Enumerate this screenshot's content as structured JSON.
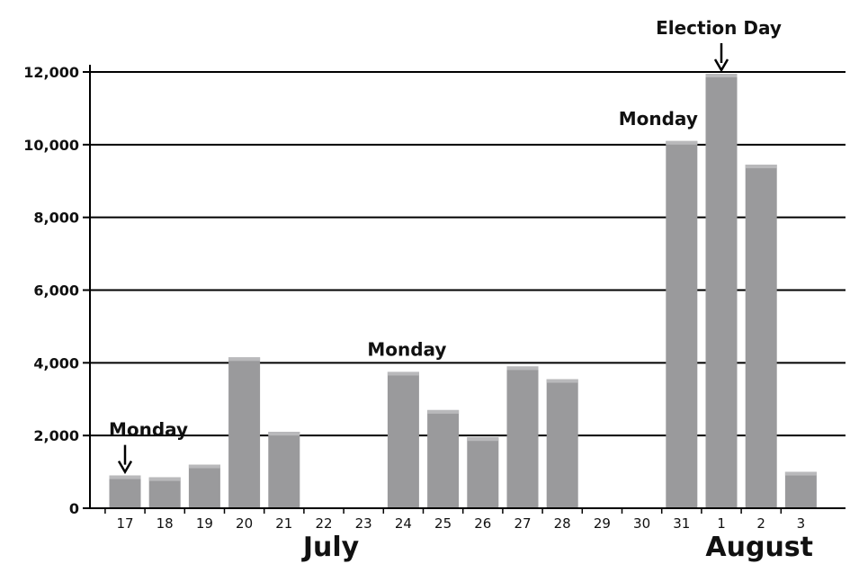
{
  "chart_data": {
    "type": "bar",
    "categories": [
      "17",
      "18",
      "19",
      "20",
      "21",
      "22",
      "23",
      "24",
      "25",
      "26",
      "27",
      "28",
      "29",
      "30",
      "31",
      "1",
      "2",
      "3"
    ],
    "values": [
      900,
      850,
      1200,
      4150,
      2100,
      0,
      0,
      3750,
      2700,
      1950,
      3900,
      3550,
      0,
      0,
      10100,
      11950,
      9450,
      1000
    ],
    "ylim": [
      0,
      12000
    ],
    "yticks": [
      0,
      2000,
      4000,
      6000,
      8000,
      10000,
      12000
    ],
    "ytick_labels": [
      "0",
      "2,000",
      "4,000",
      "6,000",
      "8,000",
      "10,000",
      "12,000"
    ],
    "month_labels": [
      {
        "text": "July",
        "under_category": "22"
      },
      {
        "text": "August",
        "under_category": "2"
      }
    ],
    "annotations": [
      {
        "text": "Monday",
        "category": "17",
        "arrow": true
      },
      {
        "text": "Monday",
        "category": "24",
        "arrow": false
      },
      {
        "text": "Monday",
        "category": "31",
        "arrow": false
      },
      {
        "text": "Election Day",
        "category": "1",
        "arrow": true
      }
    ],
    "grid": true,
    "bar_color": "#9a9a9c",
    "bar_highlight_color": "#b9b9bb",
    "grid_color": "#000000"
  }
}
